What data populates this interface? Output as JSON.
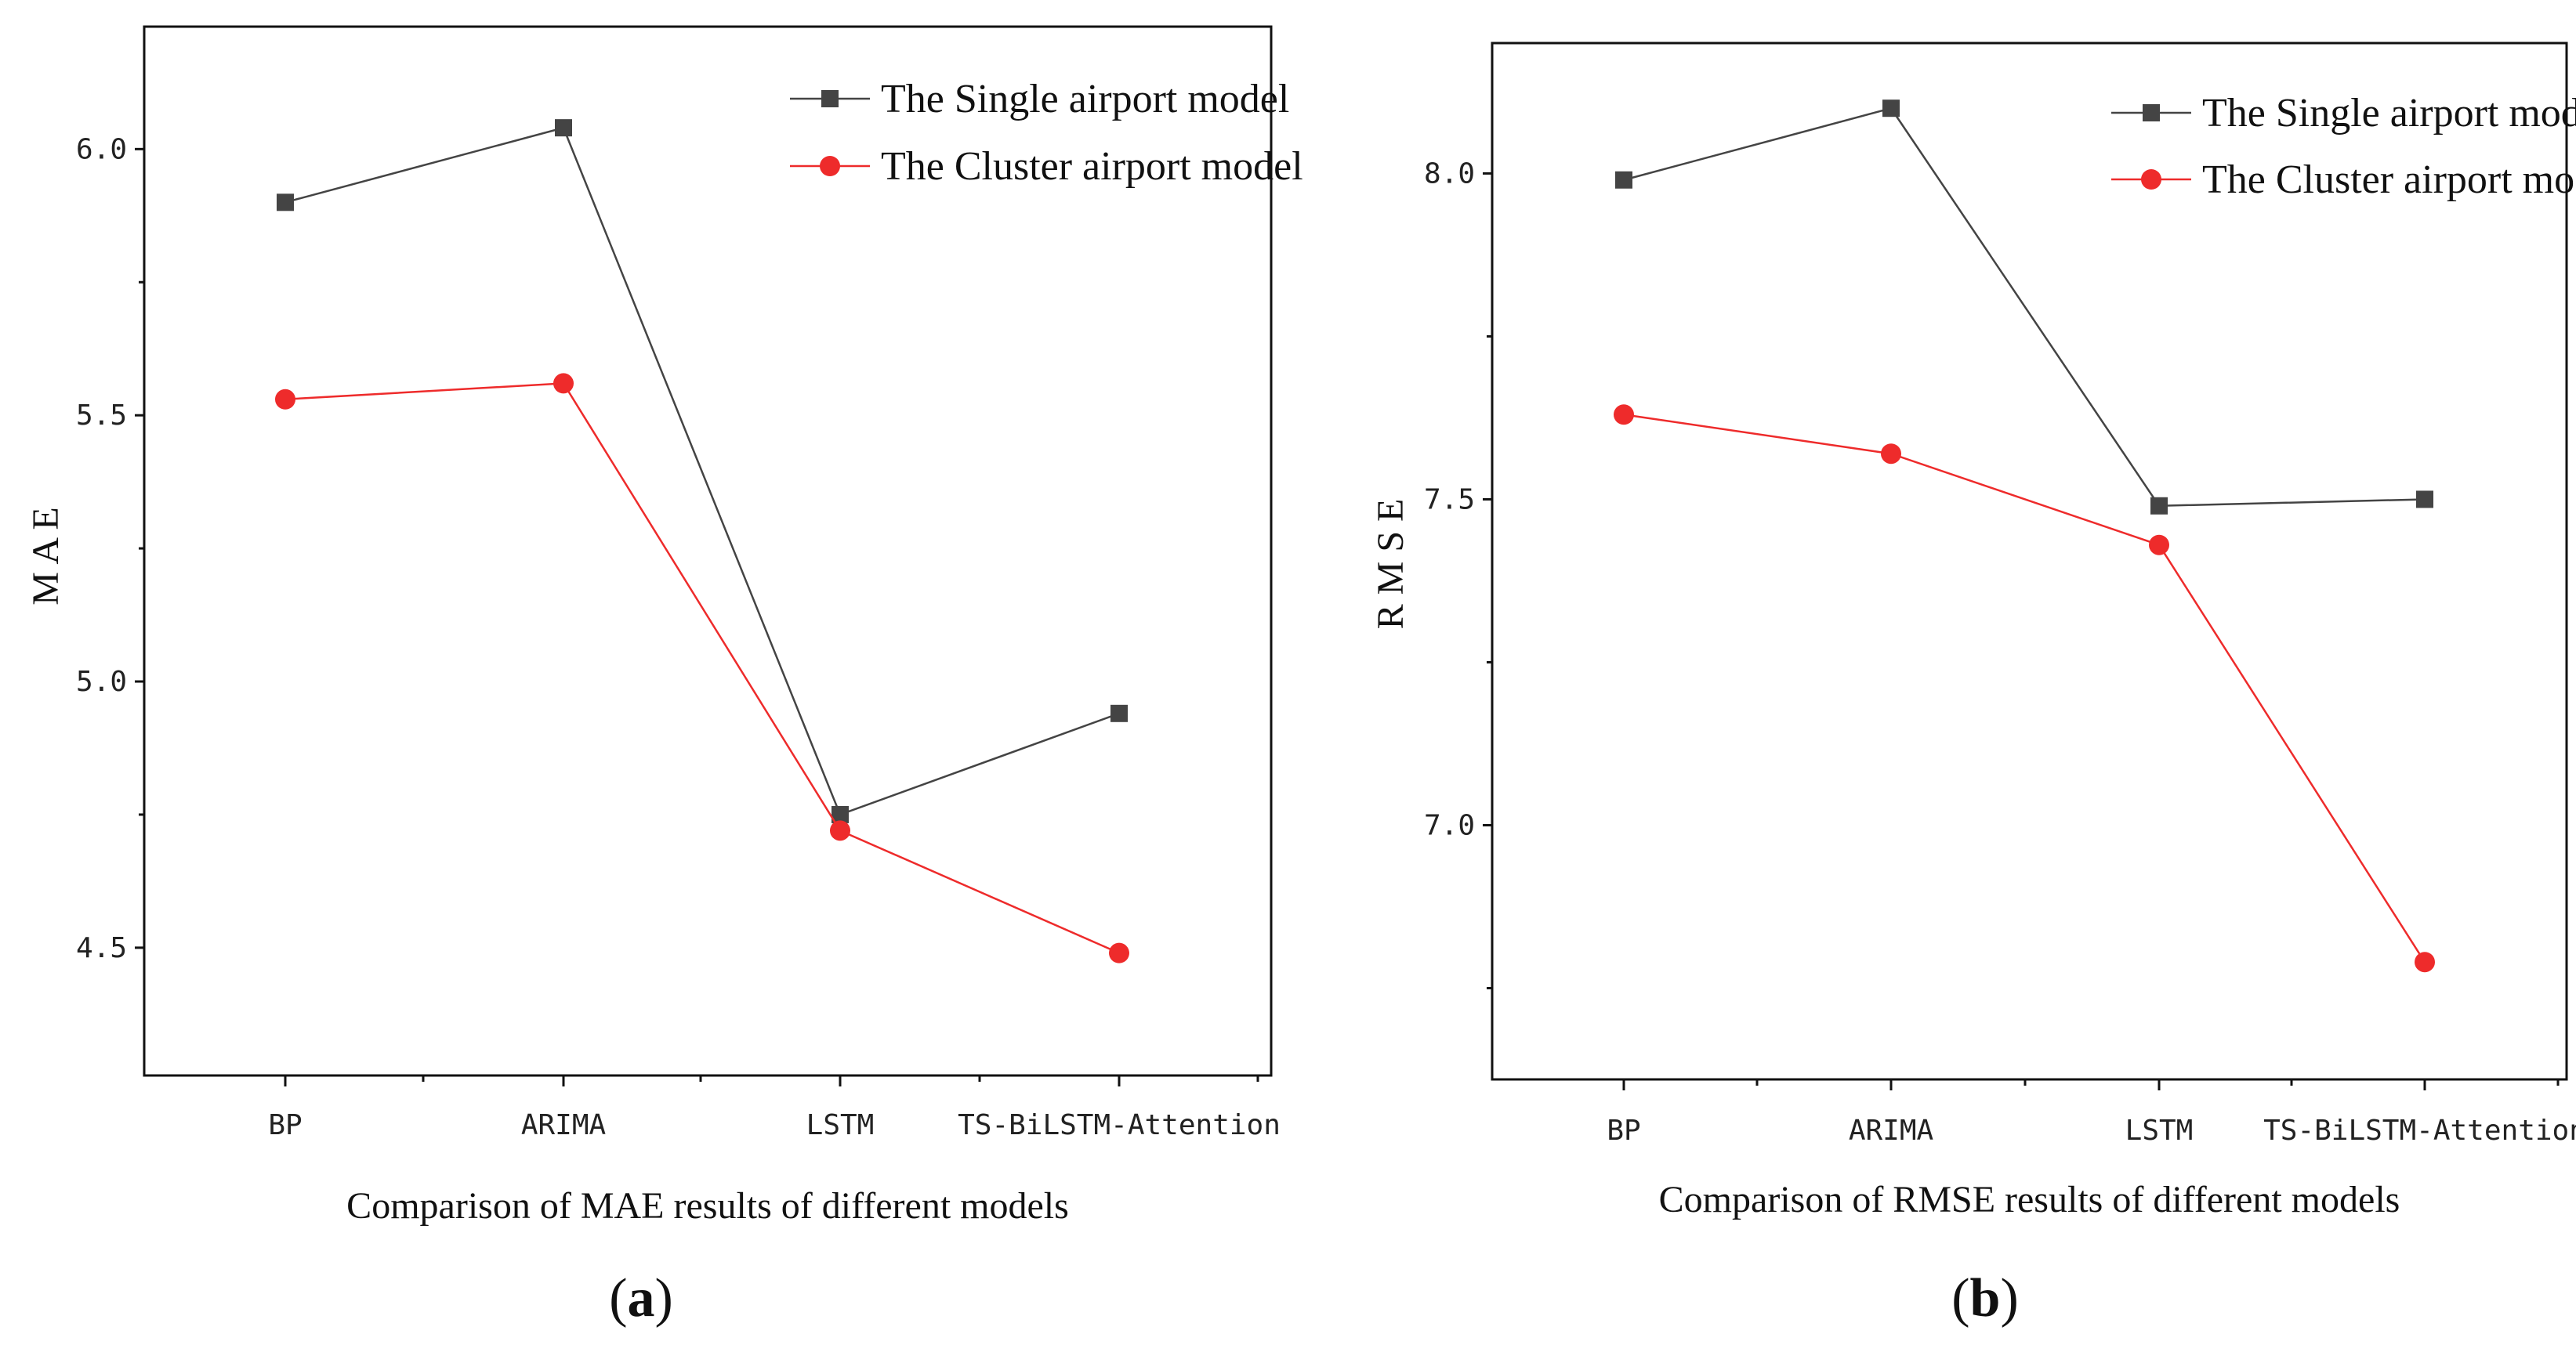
{
  "colors": {
    "series_single": "#444444",
    "series_cluster": "#ee2b2b",
    "axis": "#111111"
  },
  "chart_data": [
    {
      "type": "line",
      "panel_label": "a",
      "categories": [
        "BP",
        "ARIMA",
        "LSTM",
        "TS-BiLSTM-Attention"
      ],
      "series": [
        {
          "name": "The Single airport model",
          "marker": "square",
          "values": [
            5.9,
            6.04,
            4.75,
            4.94
          ]
        },
        {
          "name": "The Cluster airport model",
          "marker": "circle",
          "values": [
            5.53,
            5.56,
            4.72,
            4.49
          ]
        }
      ],
      "title": "Comparison of MAE results of different models",
      "xlabel": "Comparison of MAE results of different models",
      "ylabel": "M A E",
      "ylim": [
        4.26,
        6.23
      ],
      "yticks": [
        4.5,
        5.0,
        5.5,
        6.0
      ],
      "ytick_labels": [
        "4.5",
        "5.0",
        "5.5",
        "6.0"
      ],
      "legend_position": "top-right",
      "grid": false
    },
    {
      "type": "line",
      "panel_label": "b",
      "categories": [
        "BP",
        "ARIMA",
        "LSTM",
        "TS-BiLSTM-Attention"
      ],
      "series": [
        {
          "name": "The Single airport model",
          "marker": "square",
          "values": [
            7.99,
            8.1,
            7.49,
            7.5
          ]
        },
        {
          "name": "The Cluster airport model",
          "marker": "circle",
          "values": [
            7.63,
            7.57,
            7.43,
            6.79
          ]
        }
      ],
      "title": "Comparison of RMSE results of different models",
      "xlabel": "Comparison of RMSE results of different models",
      "ylabel": "R M S E",
      "ylim": [
        6.61,
        8.2
      ],
      "yticks": [
        7.0,
        7.5,
        8.0
      ],
      "ytick_labels": [
        "7.0",
        "7.5",
        "8.0"
      ],
      "legend_position": "top-right",
      "grid": false
    }
  ]
}
